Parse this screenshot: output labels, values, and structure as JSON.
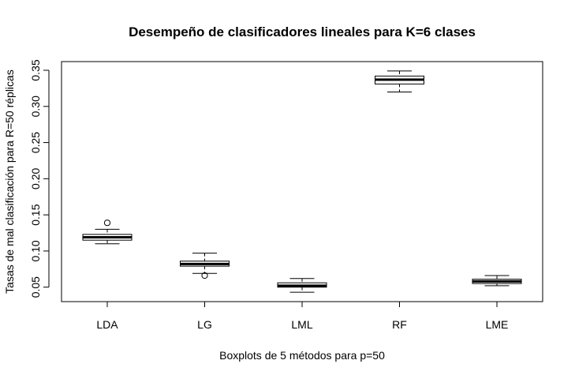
{
  "chart_data": {
    "type": "boxplot",
    "title": "Desempeño de clasificadores lineales para K=6 clases",
    "xlabel": "Boxplots de 5 métodos para p=50",
    "ylabel": "Tasas de mal clasificación para R=50 réplicas",
    "ylim": [
      0.03,
      0.362
    ],
    "yticks": [
      "0.05",
      "0.10",
      "0.15",
      "0.20",
      "0.25",
      "0.30",
      "0.35"
    ],
    "categories": [
      "LDA",
      "LG",
      "LML",
      "RF",
      "LME"
    ],
    "boxes": [
      {
        "name": "LDA",
        "whisker_low": 0.11,
        "q1": 0.115,
        "median": 0.119,
        "q3": 0.123,
        "whisker_high": 0.13,
        "outliers": [
          0.139
        ]
      },
      {
        "name": "LG",
        "whisker_low": 0.069,
        "q1": 0.079,
        "median": 0.082,
        "q3": 0.086,
        "whisker_high": 0.097,
        "outliers": [
          0.066
        ]
      },
      {
        "name": "LML",
        "whisker_low": 0.043,
        "q1": 0.05,
        "median": 0.052,
        "q3": 0.056,
        "whisker_high": 0.062,
        "outliers": []
      },
      {
        "name": "RF",
        "whisker_low": 0.32,
        "q1": 0.331,
        "median": 0.337,
        "q3": 0.342,
        "whisker_high": 0.349,
        "outliers": []
      },
      {
        "name": "LME",
        "whisker_low": 0.052,
        "q1": 0.055,
        "median": 0.058,
        "q3": 0.061,
        "whisker_high": 0.066,
        "outliers": []
      }
    ],
    "grid": false,
    "legend": "none"
  }
}
